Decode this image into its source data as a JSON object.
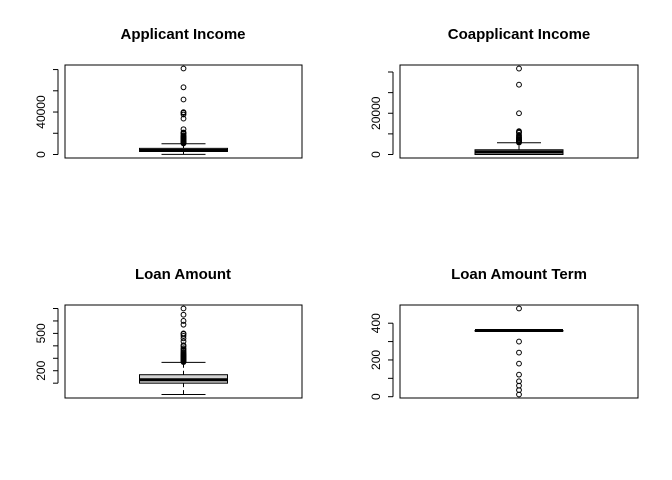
{
  "chart_data": [
    {
      "type": "boxplot",
      "title": "Applicant Income",
      "ylim": [
        0,
        81000
      ],
      "yticks": [
        0,
        20000,
        40000,
        60000,
        80000
      ],
      "yticklabels": [
        "0",
        "",
        "40000",
        "",
        ""
      ],
      "box": {
        "min": 150,
        "q1": 2875,
        "median": 3812,
        "q3": 5795,
        "max": 10171
      },
      "outliers": [
        10400,
        10750,
        11000,
        11300,
        11600,
        11950,
        12300,
        12700,
        13300,
        14000,
        14600,
        15000,
        15750,
        16250,
        16700,
        17250,
        18150,
        19500,
        20300,
        20750,
        23800,
        33800,
        37700,
        39150,
        39900,
        51800,
        63300,
        81000
      ]
    },
    {
      "type": "boxplot",
      "title": "Coapplicant Income",
      "ylim": [
        0,
        41700
      ],
      "yticks": [
        0,
        10000,
        20000,
        30000,
        40000
      ],
      "yticklabels": [
        "0",
        "",
        "20000",
        "",
        ""
      ],
      "box": {
        "min": 0,
        "q1": 0,
        "median": 1189,
        "q3": 2297,
        "max": 5701
      },
      "outliers": [
        5780,
        5900,
        6000,
        6250,
        6550,
        6700,
        7000,
        7100,
        7250,
        7750,
        8100,
        8350,
        8980,
        9500,
        10500,
        10970,
        11300,
        20000,
        33840,
        41667
      ]
    },
    {
      "type": "boxplot",
      "title": "Loan Amount",
      "ylim": [
        9,
        700
      ],
      "yticks": [
        100,
        200,
        300,
        400,
        500,
        600,
        700
      ],
      "yticklabels": [
        "",
        "200",
        "",
        "",
        "500",
        "",
        ""
      ],
      "box": {
        "min": 9,
        "q1": 100,
        "median": 128,
        "q3": 168,
        "max": 267
      },
      "outliers": [
        270,
        275,
        280,
        285,
        290,
        296,
        300,
        305,
        311,
        315,
        320,
        324,
        330,
        335,
        342,
        350,
        360,
        370,
        380,
        396,
        405,
        436,
        460,
        480,
        495,
        500,
        570,
        600,
        650,
        700
      ]
    },
    {
      "type": "boxplot",
      "title": "Loan Amount Term",
      "ylim": [
        12,
        480
      ],
      "yticks": [
        0,
        100,
        200,
        300,
        400
      ],
      "yticklabels": [
        "0",
        "",
        "200",
        "",
        "400"
      ],
      "box": {
        "min": 360,
        "q1": 360,
        "median": 360,
        "q3": 360,
        "max": 360
      },
      "outliers": [
        12,
        36,
        60,
        84,
        120,
        180,
        240,
        300,
        480
      ]
    }
  ]
}
